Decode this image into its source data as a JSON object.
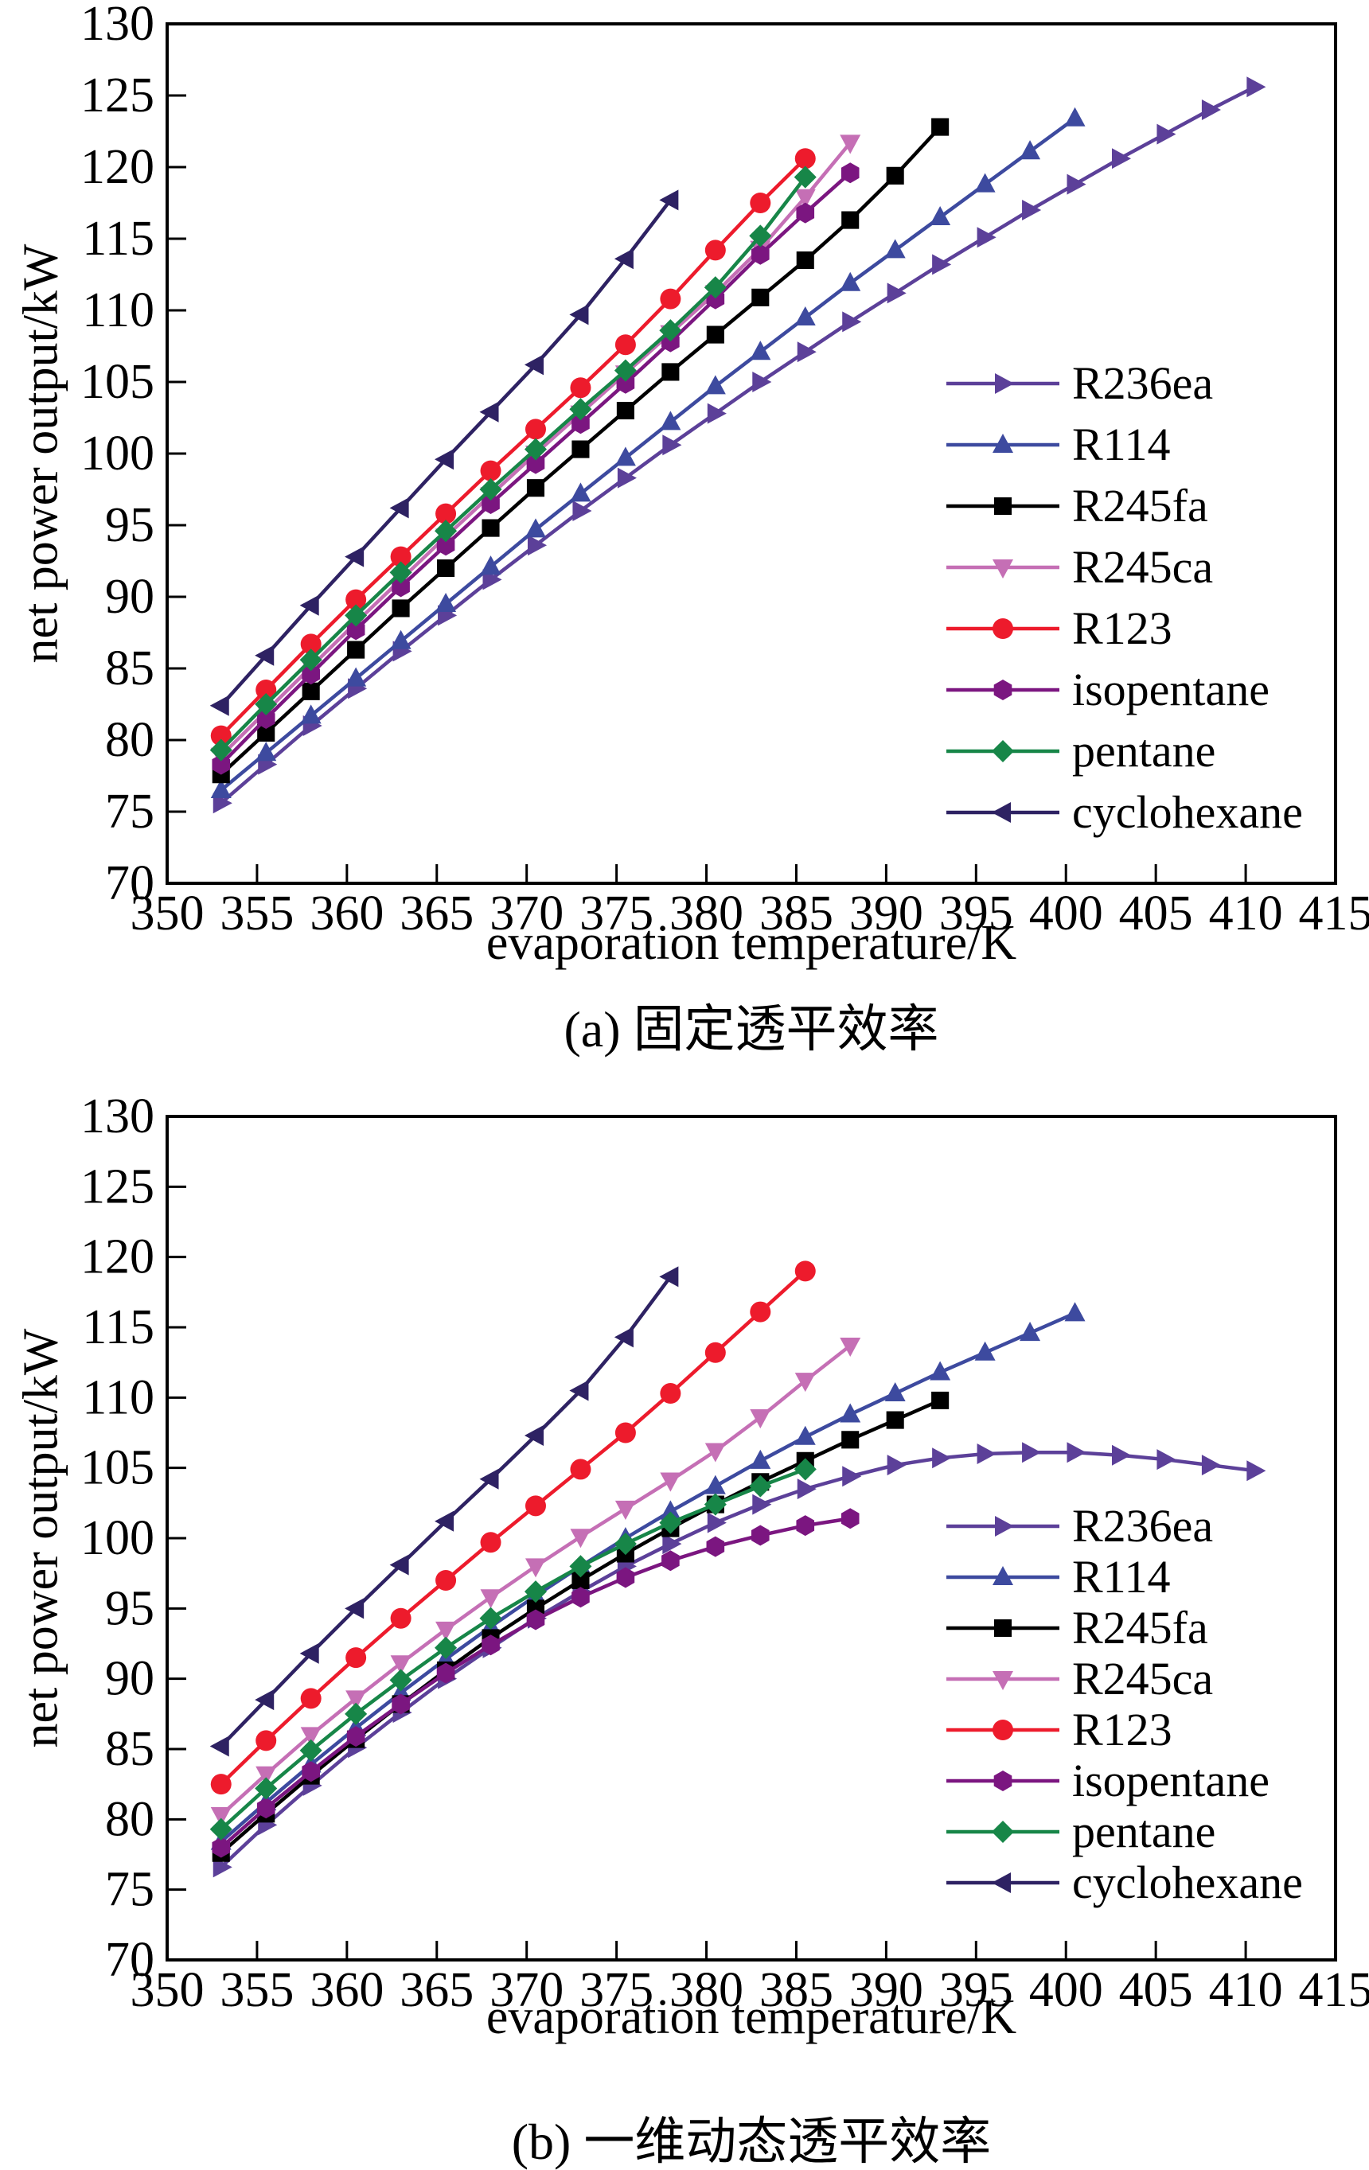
{
  "figure": {
    "background": "#ffffff",
    "axis_color": "#000000"
  },
  "chart_data": [
    {
      "id": "a",
      "type": "line",
      "caption": "(a) 固定透平效率",
      "xlabel": "evaporation temperature/K",
      "ylabel": "net power output/kW",
      "xlim": [
        350,
        415
      ],
      "xtick_step": 5,
      "ylim": [
        70,
        130
      ],
      "ytick_step": 5,
      "grid": false,
      "legend_position": "inside-right",
      "series": [
        {
          "name": "R236ea",
          "color": "#5C4099",
          "marker": "triangle-right",
          "x": [
            353,
            355.5,
            358,
            360.5,
            363,
            365.5,
            368,
            370.5,
            373,
            375.5,
            378,
            380.5,
            383,
            385.5,
            388,
            390.5,
            393,
            395.5,
            398,
            400.5,
            403,
            405.5,
            408,
            410.5
          ],
          "y": [
            75.6,
            78.3,
            81.0,
            83.6,
            86.2,
            88.7,
            91.2,
            93.6,
            96.0,
            98.3,
            100.6,
            102.8,
            105.0,
            107.1,
            109.2,
            111.2,
            113.2,
            115.1,
            117.0,
            118.8,
            120.6,
            122.3,
            124.0,
            125.6
          ]
        },
        {
          "name": "R114",
          "color": "#3D4A9F",
          "marker": "triangle-up",
          "x": [
            353,
            355.5,
            358,
            360.5,
            363,
            365.5,
            368,
            370.5,
            373,
            375.5,
            378,
            380.5,
            383,
            385.5,
            388,
            390.5,
            393,
            395.5,
            398,
            400.5
          ],
          "y": [
            76.5,
            79.1,
            81.7,
            84.3,
            86.9,
            89.5,
            92.1,
            94.7,
            97.2,
            99.7,
            102.2,
            104.7,
            107.1,
            109.5,
            111.9,
            114.2,
            116.5,
            118.8,
            121.1,
            123.4
          ]
        },
        {
          "name": "R245fa",
          "color": "#000000",
          "marker": "square",
          "x": [
            353,
            355.5,
            358,
            360.5,
            363,
            365.5,
            368,
            370.5,
            373,
            375.5,
            378,
            380.5,
            383,
            385.5,
            388,
            390.5,
            393
          ],
          "y": [
            77.6,
            80.5,
            83.4,
            86.3,
            89.2,
            92.0,
            94.8,
            97.6,
            100.3,
            103.0,
            105.7,
            108.3,
            110.9,
            113.5,
            116.3,
            119.4,
            122.8
          ]
        },
        {
          "name": "R245ca",
          "color": "#C56FB5",
          "marker": "triangle-down",
          "x": [
            353,
            355.5,
            358,
            360.5,
            363,
            365.5,
            368,
            370.5,
            373,
            375.5,
            378,
            380.5,
            383,
            385.5,
            388
          ],
          "y": [
            78.9,
            82.0,
            85.1,
            88.2,
            91.2,
            94.2,
            97.1,
            100.0,
            102.8,
            105.6,
            108.4,
            111.2,
            114.3,
            117.9,
            121.7
          ]
        },
        {
          "name": "R123",
          "color": "#ED1B2C",
          "marker": "circle",
          "x": [
            353,
            355.5,
            358,
            360.5,
            363,
            365.5,
            368,
            370.5,
            373,
            375.5,
            378,
            380.5,
            383,
            385.5
          ],
          "y": [
            80.3,
            83.5,
            86.7,
            89.8,
            92.8,
            95.8,
            98.8,
            101.7,
            104.6,
            107.6,
            110.8,
            114.2,
            117.5,
            120.6
          ]
        },
        {
          "name": "isopentane",
          "color": "#7B1680",
          "marker": "hexagon",
          "x": [
            353,
            355.5,
            358,
            360.5,
            363,
            365.5,
            368,
            370.5,
            373,
            375.5,
            378,
            380.5,
            383,
            385.5,
            388
          ],
          "y": [
            78.3,
            81.5,
            84.6,
            87.7,
            90.7,
            93.6,
            96.5,
            99.3,
            102.1,
            104.9,
            107.8,
            110.8,
            113.9,
            116.8,
            119.6
          ]
        },
        {
          "name": "pentane",
          "color": "#178648",
          "marker": "diamond",
          "x": [
            353,
            355.5,
            358,
            360.5,
            363,
            365.5,
            368,
            370.5,
            373,
            375.5,
            378,
            380.5,
            383,
            385.5
          ],
          "y": [
            79.3,
            82.5,
            85.6,
            88.7,
            91.7,
            94.6,
            97.5,
            100.3,
            103.1,
            105.8,
            108.6,
            111.6,
            115.2,
            119.3
          ]
        },
        {
          "name": "cyclohexane",
          "color": "#2E2263",
          "marker": "triangle-left",
          "x": [
            353,
            355.5,
            358,
            360.5,
            363,
            365.5,
            368,
            370.5,
            373,
            375.5,
            378
          ],
          "y": [
            82.4,
            85.9,
            89.4,
            92.8,
            96.2,
            99.6,
            102.9,
            106.2,
            109.7,
            113.6,
            117.7
          ]
        }
      ]
    },
    {
      "id": "b",
      "type": "line",
      "caption": "(b) 一维动态透平效率",
      "xlabel": "evaporation temperature/K",
      "ylabel": "net power output/kW",
      "xlim": [
        350,
        415
      ],
      "xtick_step": 5,
      "ylim": [
        70,
        130
      ],
      "ytick_step": 5,
      "grid": false,
      "legend_position": "inside-right",
      "series": [
        {
          "name": "R236ea",
          "color": "#5C4099",
          "marker": "triangle-right",
          "x": [
            353,
            355.5,
            358,
            360.5,
            363,
            365.5,
            368,
            370.5,
            373,
            375.5,
            378,
            380.5,
            383,
            385.5,
            388,
            390.5,
            393,
            395.5,
            398,
            400.5,
            403,
            405.5,
            408,
            410.5
          ],
          "y": [
            76.6,
            79.6,
            82.4,
            85.1,
            87.6,
            90.0,
            92.2,
            94.3,
            96.2,
            98.0,
            99.6,
            101.1,
            102.4,
            103.5,
            104.4,
            105.2,
            105.7,
            106.0,
            106.1,
            106.1,
            105.9,
            105.6,
            105.2,
            104.8
          ]
        },
        {
          "name": "R114",
          "color": "#3D4A9F",
          "marker": "triangle-up",
          "x": [
            353,
            355.5,
            358,
            360.5,
            363,
            365.5,
            368,
            370.5,
            373,
            375.5,
            378,
            380.5,
            383,
            385.5,
            388,
            390.5,
            393,
            395.5,
            398,
            400.5
          ],
          "y": [
            78.4,
            81.2,
            83.9,
            86.5,
            89.0,
            91.4,
            93.7,
            95.9,
            98.0,
            100.0,
            101.9,
            103.7,
            105.5,
            107.2,
            108.8,
            110.3,
            111.8,
            113.2,
            114.6,
            116.0
          ]
        },
        {
          "name": "R245fa",
          "color": "#000000",
          "marker": "square",
          "x": [
            353,
            355.5,
            358,
            360.5,
            363,
            365.5,
            368,
            370.5,
            373,
            375.5,
            378,
            380.5,
            383,
            385.5,
            388,
            390.5,
            393
          ],
          "y": [
            77.6,
            80.4,
            83.1,
            85.7,
            88.2,
            90.6,
            92.9,
            95.0,
            97.0,
            98.9,
            100.7,
            102.4,
            104.0,
            105.5,
            107.0,
            108.4,
            109.8
          ]
        },
        {
          "name": "R245ca",
          "color": "#C56FB5",
          "marker": "triangle-down",
          "x": [
            353,
            355.5,
            358,
            360.5,
            363,
            365.5,
            368,
            370.5,
            373,
            375.5,
            378,
            380.5,
            383,
            385.5,
            388
          ],
          "y": [
            80.3,
            83.2,
            86.0,
            88.6,
            91.1,
            93.5,
            95.8,
            98.0,
            100.1,
            102.1,
            104.1,
            106.2,
            108.6,
            111.2,
            113.7
          ]
        },
        {
          "name": "R123",
          "color": "#ED1B2C",
          "marker": "circle",
          "x": [
            353,
            355.5,
            358,
            360.5,
            363,
            365.5,
            368,
            370.5,
            373,
            375.5,
            378,
            380.5,
            383,
            385.5
          ],
          "y": [
            82.5,
            85.6,
            88.6,
            91.5,
            94.3,
            97.0,
            99.7,
            102.3,
            104.9,
            107.5,
            110.3,
            113.2,
            116.1,
            119.0
          ]
        },
        {
          "name": "isopentane",
          "color": "#7B1680",
          "marker": "hexagon",
          "x": [
            353,
            355.5,
            358,
            360.5,
            363,
            365.5,
            368,
            370.5,
            373,
            375.5,
            378,
            380.5,
            383,
            385.5,
            388
          ],
          "y": [
            78.0,
            80.8,
            83.4,
            85.9,
            88.2,
            90.4,
            92.4,
            94.2,
            95.8,
            97.2,
            98.4,
            99.4,
            100.2,
            100.9,
            101.4
          ]
        },
        {
          "name": "pentane",
          "color": "#178648",
          "marker": "diamond",
          "x": [
            353,
            355.5,
            358,
            360.5,
            363,
            365.5,
            368,
            370.5,
            373,
            375.5,
            378,
            380.5,
            383,
            385.5
          ],
          "y": [
            79.3,
            82.2,
            84.9,
            87.5,
            89.9,
            92.2,
            94.3,
            96.2,
            98.0,
            99.6,
            101.1,
            102.4,
            103.7,
            104.9
          ]
        },
        {
          "name": "cyclohexane",
          "color": "#2E2263",
          "marker": "triangle-left",
          "x": [
            353,
            355.5,
            358,
            360.5,
            363,
            365.5,
            368,
            370.5,
            373,
            375.5,
            378
          ],
          "y": [
            85.2,
            88.5,
            91.8,
            95.0,
            98.1,
            101.2,
            104.2,
            107.3,
            110.5,
            114.3,
            118.6
          ]
        }
      ]
    }
  ]
}
